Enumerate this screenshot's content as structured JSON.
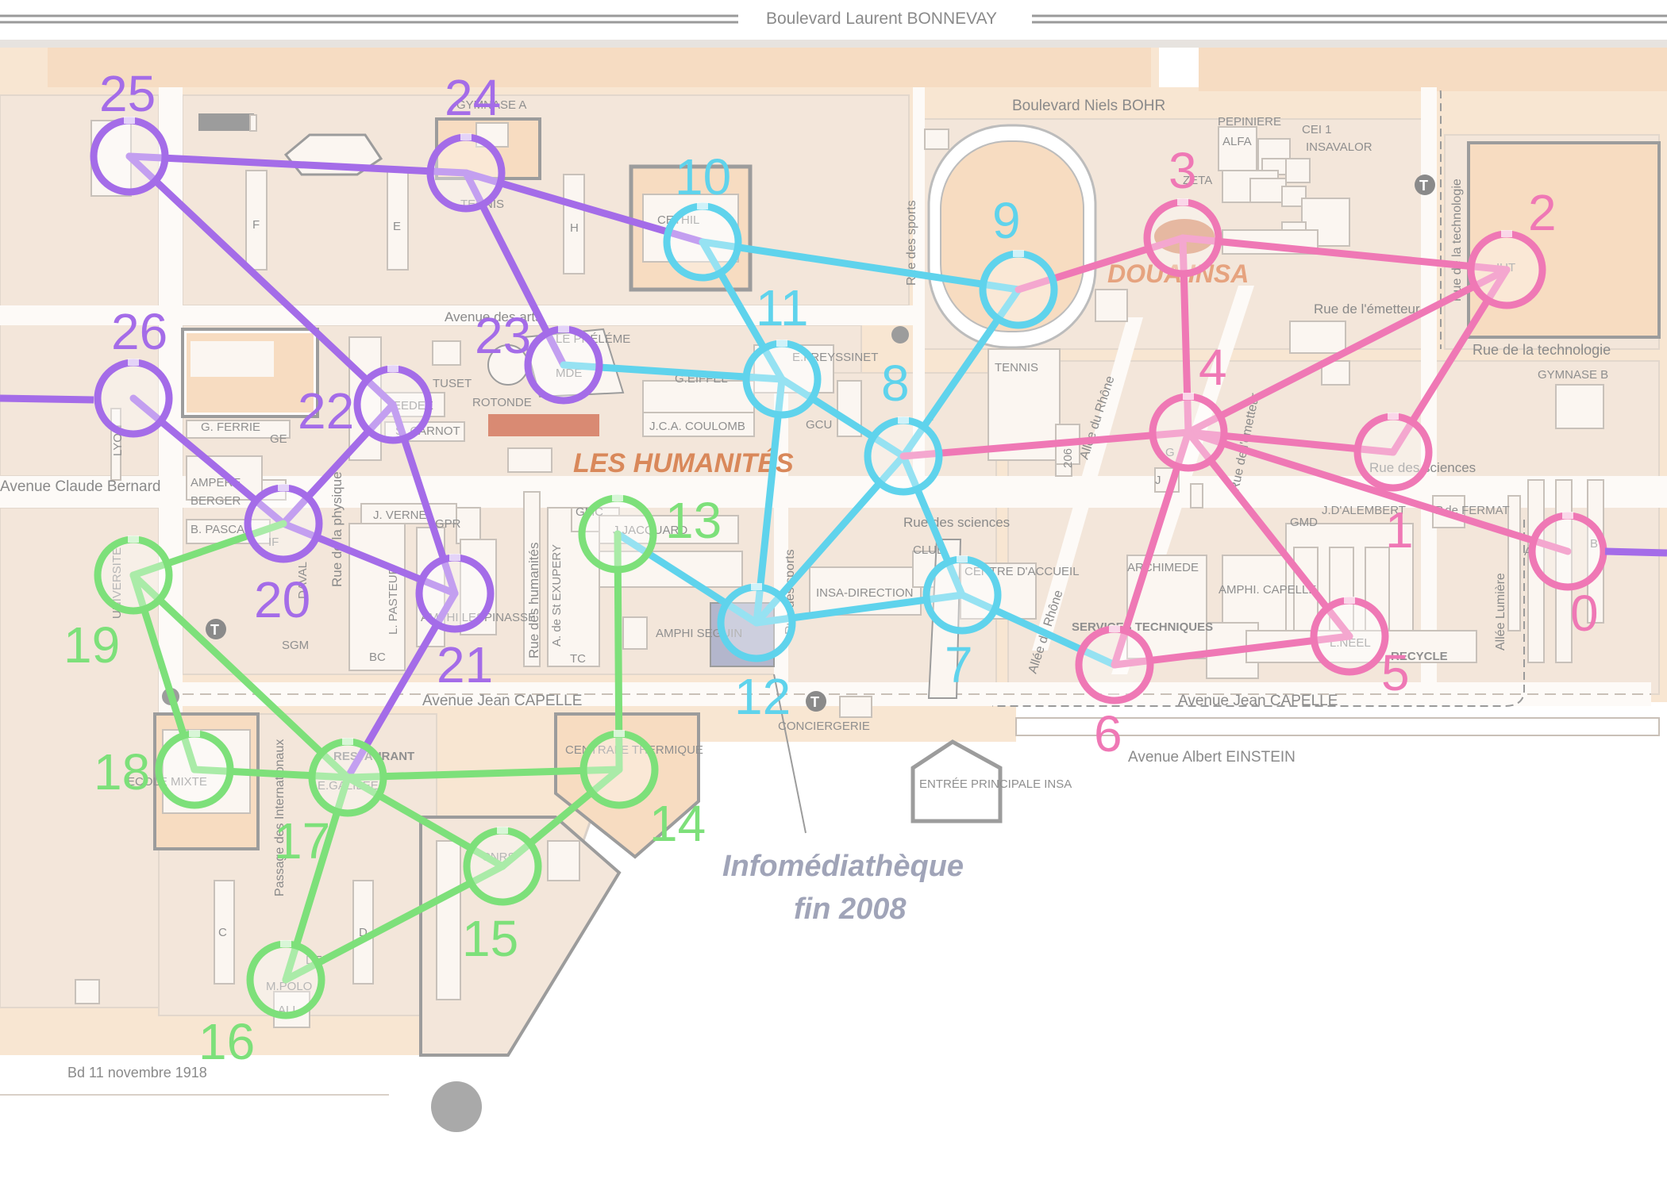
{
  "colors": {
    "purple": "#a46ce8",
    "cyan": "#5fd3ec",
    "pink": "#ef78b5",
    "green": "#7de07a",
    "ground": "#f8e6d2",
    "road": "#ffffff",
    "text": "#8a8a8a",
    "accent_text": "#d9885a",
    "infomed_text": "#a0a4b8"
  },
  "streets": {
    "bonnevay": "Boulevard Laurent BONNEVAY",
    "bohr": "Boulevard Niels BOHR",
    "claude_bernard": "Avenue Claude Bernard",
    "capelle_left": "Avenue Jean CAPELLE",
    "capelle_right": "Avenue Jean CAPELLE",
    "einstein": "Avenue Albert EINSTEIN",
    "arts": "Avenue des arts",
    "sciences_mid": "Rue des sciences",
    "sciences_right": "Rue des sciences",
    "emetteur": "Rue de l'émetteur",
    "emetteur_v": "Rue de l'émetteur",
    "technologie": "Rue de la technologie",
    "technologie_v": "Rue de la technologie",
    "physique": "Rue de la physique",
    "humanites": "Rue des humanités",
    "sports_top": "Rue des sports",
    "sports_bottom": "Rue des sports",
    "rhone_top": "Allée du Rhône",
    "rhone_bottom": "Allée du Rhône",
    "lumiere": "Allée Lumière",
    "passage": "Passage des Internationaux",
    "bd11": "Bd 11 novembre 1918"
  },
  "areas": {
    "les_humanites": "LES HUMANITÉS",
    "doua_insa": "DOUA INSA",
    "infomed_1": "Infomédiathèque",
    "infomed_2": "fin 2008",
    "gymnase_a": "GYMNASE A",
    "gymnase_b": "GYMNASE B",
    "tennis_top": "TENNIS",
    "tennis_mid": "TENNIS",
    "pepiniere": "PEPINIERE",
    "alfa": "ALFA",
    "cei": "CEI 1",
    "insavalor": "INSAVALOR",
    "iut": "IUT",
    "cethil": "CETHIL",
    "eyssinet": "E.FREYSSINET",
    "eiffel": "G.EIFFEL",
    "coulomb": "J.C.A. COULOMB",
    "gcu": "GCU",
    "ferrie": "G. FERRIE",
    "ge": "GE",
    "lyon": "LYON",
    "ampere": "AMPERE",
    "berger": "BERGER",
    "pascal": "B. PASCAL",
    "if": "IF",
    "verne": "J. VERNE",
    "pasteur": "L. PASTEUR",
    "bc": "BC",
    "sgm": "SGM",
    "daval": "DAVAL",
    "amphi_lesp": "AMPHI LESPINASSE",
    "carnot": "S. CARNOT",
    "eedee": "EEDEE",
    "tuset": "TUSET",
    "rotonde": "ROTONDE",
    "prelem": "LE PRÉLÉME",
    "mde": "MDE",
    "gpr": "GPR",
    "jacquard": "J.JACQUARD",
    "gmc": "GMC",
    "exupery": "A. de St EXUPERY",
    "tc": "TC",
    "amphi_seguin": "AMPHI SEGUIN",
    "insa_direction": "INSA-DIRECTION",
    "club": "CLUB",
    "centre_accueil": "CENTRE D'ACCUEIL",
    "entree": "ENTRÉE PRINCIPALE INSA",
    "conciergerie": "CONCIERGERIE",
    "services_tech": "SERVICES TECHNIQUES",
    "archimede": "ARCHIMEDE",
    "amphi_capelle": "AMPHI. CAPELLE",
    "dalembert": "J.D'ALEMBERT",
    "pdefermat": "P.de FERMAT",
    "gmd": "GMD",
    "lneel": "L.NEEL",
    "recycle": "RECYCLE",
    "b206": "206",
    "universite": "UNIVERSITE",
    "restaurant": "RESTAURANT",
    "galilee": "E.GALILEE",
    "ecole_mixte": "ECOLE MIXTE",
    "centrale": "CENTRALE THERMIQUE",
    "cnrs": "CNRS",
    "mpolo": "M.POLO",
    "dep": "DEP",
    "f": "F",
    "e": "E",
    "h": "H",
    "c": "C",
    "d": "D",
    "a": "A",
    "b": "B",
    "g": "G",
    "j": "J",
    "t": "T",
    "zeta": "ZETA",
    "all": "ALL"
  },
  "nodes": [
    {
      "id": "0",
      "color": "pink"
    },
    {
      "id": "1",
      "color": "pink"
    },
    {
      "id": "2",
      "color": "pink"
    },
    {
      "id": "3",
      "color": "pink"
    },
    {
      "id": "4",
      "color": "pink"
    },
    {
      "id": "5",
      "color": "pink"
    },
    {
      "id": "6",
      "color": "pink"
    },
    {
      "id": "7",
      "color": "cyan"
    },
    {
      "id": "8",
      "color": "cyan"
    },
    {
      "id": "9",
      "color": "cyan"
    },
    {
      "id": "10",
      "color": "cyan"
    },
    {
      "id": "11",
      "color": "cyan"
    },
    {
      "id": "12",
      "color": "cyan"
    },
    {
      "id": "13",
      "color": "green"
    },
    {
      "id": "14",
      "color": "green"
    },
    {
      "id": "15",
      "color": "green"
    },
    {
      "id": "16",
      "color": "green"
    },
    {
      "id": "17",
      "color": "green"
    },
    {
      "id": "18",
      "color": "green"
    },
    {
      "id": "19",
      "color": "green"
    },
    {
      "id": "20",
      "color": "purple"
    },
    {
      "id": "21",
      "color": "purple"
    },
    {
      "id": "22",
      "color": "purple"
    },
    {
      "id": "23",
      "color": "purple"
    },
    {
      "id": "24",
      "color": "purple"
    },
    {
      "id": "25",
      "color": "purple"
    },
    {
      "id": "26",
      "color": "purple"
    }
  ],
  "edges": [
    {
      "from": "25",
      "to": "24",
      "color": "purple"
    },
    {
      "from": "25",
      "to": "22",
      "color": "purple"
    },
    {
      "from": "24",
      "to": "10",
      "color": "purple"
    },
    {
      "from": "24",
      "to": "23",
      "color": "purple"
    },
    {
      "from": "26",
      "to": "20",
      "color": "purple"
    },
    {
      "from": "22",
      "to": "20",
      "color": "purple"
    },
    {
      "from": "22",
      "to": "21",
      "color": "purple"
    },
    {
      "from": "20",
      "to": "21",
      "color": "purple"
    },
    {
      "from": "21",
      "to": "17",
      "color": "purple"
    },
    {
      "from": "23",
      "to": "11",
      "color": "cyan"
    },
    {
      "from": "10",
      "to": "9",
      "color": "cyan"
    },
    {
      "from": "10",
      "to": "11",
      "color": "cyan"
    },
    {
      "from": "11",
      "to": "8",
      "color": "cyan"
    },
    {
      "from": "11",
      "to": "12",
      "color": "cyan"
    },
    {
      "from": "9",
      "to": "8",
      "color": "cyan"
    },
    {
      "from": "8",
      "to": "12",
      "color": "cyan"
    },
    {
      "from": "8",
      "to": "7",
      "color": "cyan"
    },
    {
      "from": "12",
      "to": "7",
      "color": "cyan"
    },
    {
      "from": "12",
      "to": "13",
      "color": "cyan"
    },
    {
      "from": "7",
      "to": "6",
      "color": "cyan"
    },
    {
      "from": "9",
      "to": "3",
      "color": "pink"
    },
    {
      "from": "3",
      "to": "2",
      "color": "pink"
    },
    {
      "from": "3",
      "to": "4",
      "color": "pink"
    },
    {
      "from": "8",
      "to": "4",
      "color": "pink"
    },
    {
      "from": "4",
      "to": "2",
      "color": "pink"
    },
    {
      "from": "4",
      "to": "1",
      "color": "pink"
    },
    {
      "from": "4",
      "to": "0",
      "color": "pink"
    },
    {
      "from": "4",
      "to": "5",
      "color": "pink"
    },
    {
      "from": "4",
      "to": "6",
      "color": "pink"
    },
    {
      "from": "2",
      "to": "1",
      "color": "pink"
    },
    {
      "from": "6",
      "to": "5",
      "color": "pink"
    },
    {
      "from": "19",
      "to": "20",
      "color": "green"
    },
    {
      "from": "19",
      "to": "18",
      "color": "green"
    },
    {
      "from": "19",
      "to": "17",
      "color": "green"
    },
    {
      "from": "18",
      "to": "17",
      "color": "green"
    },
    {
      "from": "17",
      "to": "14",
      "color": "green"
    },
    {
      "from": "17",
      "to": "15",
      "color": "green"
    },
    {
      "from": "17",
      "to": "16",
      "color": "green"
    },
    {
      "from": "14",
      "to": "13",
      "color": "green"
    },
    {
      "from": "14",
      "to": "15",
      "color": "green"
    },
    {
      "from": "15",
      "to": "16",
      "color": "green"
    }
  ]
}
